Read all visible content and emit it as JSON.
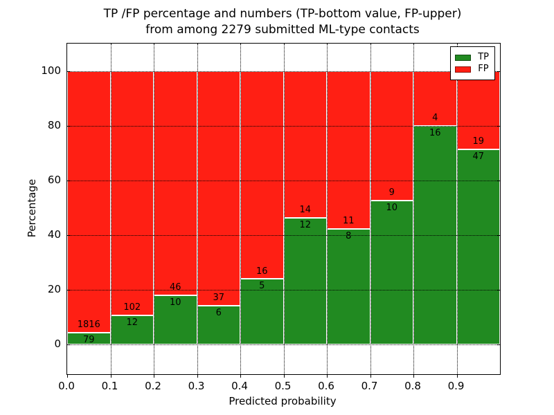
{
  "figure": {
    "title_line1": "TP /FP percentage and numbers (TP-bottom value, FP-upper)",
    "title_line2": "from among 2279 submitted ML-type contacts",
    "xlabel": "Predicted probability",
    "ylabel": "Percentage",
    "total_contacts": 2279
  },
  "legend": {
    "position": "upper right",
    "items": [
      {
        "label": "TP",
        "color": "#218a21"
      },
      {
        "label": "FP",
        "color": "#ff1f14"
      }
    ]
  },
  "chart_data": {
    "type": "bar",
    "stacked": true,
    "normalized_to": 100,
    "title": "TP /FP percentage and numbers (TP-bottom value, FP-upper) from among 2279 submitted ML-type contacts",
    "xlabel": "Predicted probability",
    "ylabel": "Percentage",
    "grid": "dotted",
    "legend_position": "upper right",
    "xlim": [
      0.0,
      1.0
    ],
    "ylim": [
      -11,
      110
    ],
    "bin_width": 0.1,
    "x_bin_starts": [
      0.0,
      0.1,
      0.2,
      0.3,
      0.4,
      0.5,
      0.6,
      0.7,
      0.8,
      0.9
    ],
    "x_tick_labels": [
      "0.0",
      "0.1",
      "0.2",
      "0.3",
      "0.4",
      "0.5",
      "0.6",
      "0.7",
      "0.8",
      "0.9"
    ],
    "y_ticks": [
      0,
      20,
      40,
      60,
      80,
      100
    ],
    "series": [
      {
        "name": "TP",
        "color": "#218a21",
        "counts": [
          79,
          12,
          10,
          6,
          5,
          12,
          8,
          10,
          16,
          47
        ]
      },
      {
        "name": "FP",
        "color": "#ff1f14",
        "counts": [
          1816,
          102,
          46,
          37,
          16,
          14,
          11,
          9,
          4,
          19
        ]
      }
    ],
    "tp_pct": [
      4.17,
      10.53,
      17.86,
      13.95,
      23.81,
      46.15,
      42.11,
      52.63,
      80.0,
      71.21
    ],
    "annotation_rule": "FP count printed just above the TP/FP boundary, TP count just below it"
  }
}
